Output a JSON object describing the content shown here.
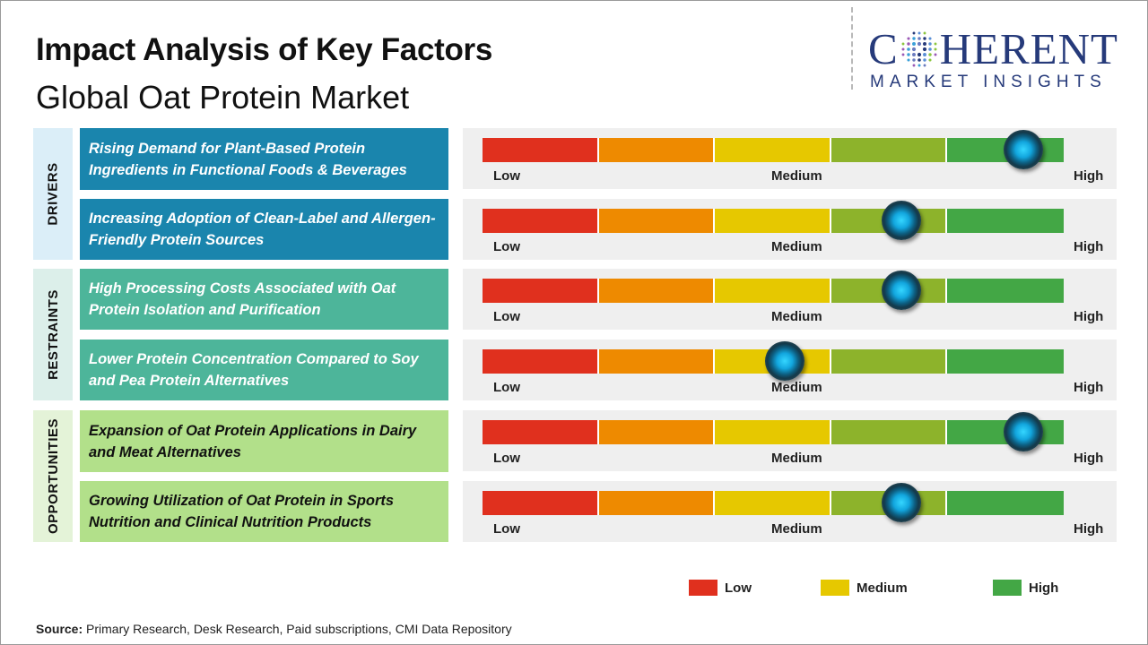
{
  "header": {
    "title": "Impact Analysis of Key Factors",
    "subtitle": "Global Oat Protein Market"
  },
  "logo": {
    "top_text_1": "C",
    "top_text_2": "HERENT",
    "bottom_text": "MARKET INSIGHTS"
  },
  "colors": {
    "low": "#e0301e",
    "low_mid": "#ee8a00",
    "medium": "#e6c800",
    "mid_high": "#8db32b",
    "high": "#43a745",
    "drivers_cat": "#dbeef8",
    "drivers_factor": "#1a85ad",
    "restraints_cat": "#dcefea",
    "restraints_factor": "#4db59a",
    "opportunities_cat": "#e4f3d8",
    "opportunities_factor": "#b2e08a"
  },
  "chart_data": {
    "type": "gauge",
    "scale_labels": {
      "low": "Low",
      "medium": "Medium",
      "high": "High"
    },
    "groups": [
      {
        "name": "DRIVERS",
        "factors": [
          {
            "label": "Rising Demand for Plant-Based Protein Ingredients in Functional Foods & Beverages",
            "impact": 0.93
          },
          {
            "label": "Increasing Adoption of Clean-Label and Allergen-Friendly Protein Sources",
            "impact": 0.72
          }
        ]
      },
      {
        "name": "RESTRAINTS",
        "factors": [
          {
            "label": "High Processing Costs Associated with Oat Protein Isolation and Purification",
            "impact": 0.72
          },
          {
            "label": "Lower Protein Concentration Compared to Soy and Pea Protein Alternatives",
            "impact": 0.52
          }
        ]
      },
      {
        "name": "OPPORTUNITIES",
        "factors": [
          {
            "label": "Expansion of Oat Protein Applications in Dairy and Meat Alternatives",
            "impact": 0.93
          },
          {
            "label": "Growing Utilization of Oat Protein in Sports Nutrition and Clinical Nutrition Products",
            "impact": 0.72
          }
        ]
      }
    ],
    "legend": [
      {
        "label": "Low",
        "color": "#e0301e"
      },
      {
        "label": "Medium",
        "color": "#e6c800"
      },
      {
        "label": "High",
        "color": "#43a745"
      }
    ]
  },
  "source": {
    "label": "Source:",
    "text": " Primary Research, Desk Research, Paid subscriptions, CMI Data Repository"
  }
}
